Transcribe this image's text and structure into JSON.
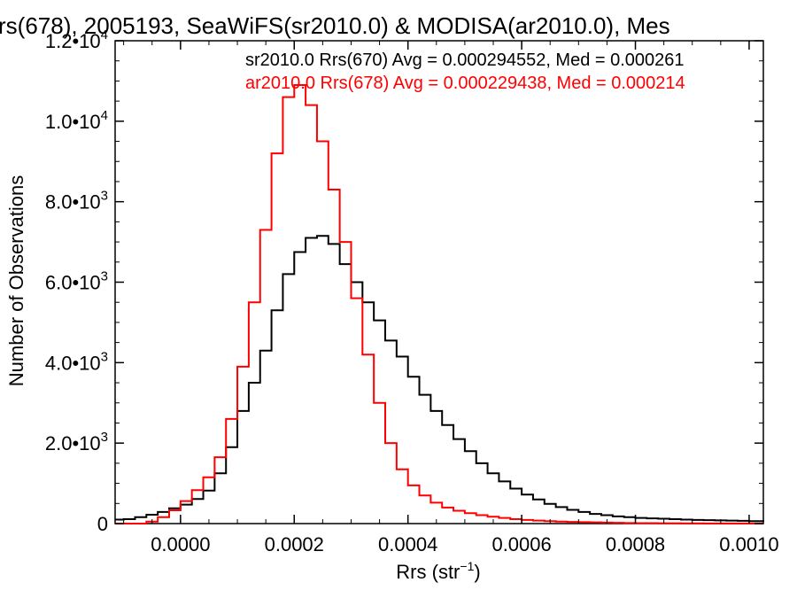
{
  "chart_data": {
    "type": "histogram",
    "title": "rs(678), 2005193, SeaWiFS(sr2010.0) & MODISA(ar2010.0), Mes",
    "xlabel": "Rrs (str⁻¹)",
    "ylabel": "Number of Observations",
    "xlim": [
      -0.000115,
      0.001025
    ],
    "ylim": [
      0,
      12000
    ],
    "x_ticks": [
      0.0,
      0.0002,
      0.0004,
      0.0006,
      0.0008,
      0.001
    ],
    "x_tick_labels": [
      "0.0000",
      "0.0002",
      "0.0004",
      "0.0006",
      "0.0008",
      "0.0010"
    ],
    "y_ticks": [
      0,
      2000,
      4000,
      6000,
      8000,
      10000,
      12000
    ],
    "y_tick_labels": [
      {
        "mantissa": "0",
        "exponent": ""
      },
      {
        "mantissa": "2.0•10",
        "exponent": "3"
      },
      {
        "mantissa": "4.0•10",
        "exponent": "3"
      },
      {
        "mantissa": "6.0•10",
        "exponent": "3"
      },
      {
        "mantissa": "8.0•10",
        "exponent": "3"
      },
      {
        "mantissa": "1.0•10",
        "exponent": "4"
      },
      {
        "mantissa": "1.2•10",
        "exponent": "4"
      }
    ],
    "legend": [
      {
        "text": "sr2010.0 Rrs(670) Avg = 0.000294552, Med = 0.000261",
        "color": "#000000"
      },
      {
        "text": "ar2010.0 Rrs(678) Avg = 0.000229438, Med = 0.000214",
        "color": "#ff0000"
      }
    ],
    "series": [
      {
        "name": "sr2010.0 Rrs(670)",
        "color": "#000000",
        "points": [
          [
            -0.000115,
            100
          ],
          [
            -0.0001,
            110
          ],
          [
            -8e-05,
            160
          ],
          [
            -6e-05,
            220
          ],
          [
            -4e-05,
            290
          ],
          [
            -2e-05,
            380
          ],
          [
            0.0,
            470
          ],
          [
            2e-05,
            610
          ],
          [
            4e-05,
            820
          ],
          [
            6e-05,
            1250
          ],
          [
            8e-05,
            1900
          ],
          [
            0.0001,
            2800
          ],
          [
            0.00012,
            3500
          ],
          [
            0.00014,
            4300
          ],
          [
            0.00016,
            5300
          ],
          [
            0.00018,
            6200
          ],
          [
            0.0002,
            6750
          ],
          [
            0.00022,
            7100
          ],
          [
            0.00024,
            7150
          ],
          [
            0.00026,
            6950
          ],
          [
            0.00028,
            6450
          ],
          [
            0.0003,
            6000
          ],
          [
            0.00032,
            5500
          ],
          [
            0.00034,
            5050
          ],
          [
            0.00036,
            4550
          ],
          [
            0.00038,
            4150
          ],
          [
            0.0004,
            3650
          ],
          [
            0.00042,
            3200
          ],
          [
            0.00044,
            2800
          ],
          [
            0.00046,
            2450
          ],
          [
            0.00048,
            2100
          ],
          [
            0.0005,
            1800
          ],
          [
            0.00052,
            1500
          ],
          [
            0.00054,
            1250
          ],
          [
            0.00056,
            1050
          ],
          [
            0.00058,
            870
          ],
          [
            0.0006,
            720
          ],
          [
            0.00062,
            600
          ],
          [
            0.00064,
            490
          ],
          [
            0.00066,
            410
          ],
          [
            0.00068,
            340
          ],
          [
            0.0007,
            290
          ],
          [
            0.00072,
            240
          ],
          [
            0.00074,
            210
          ],
          [
            0.00076,
            180
          ],
          [
            0.00078,
            160
          ],
          [
            0.0008,
            140
          ],
          [
            0.00082,
            130
          ],
          [
            0.00084,
            120
          ],
          [
            0.00086,
            110
          ],
          [
            0.00088,
            100
          ],
          [
            0.0009,
            90
          ],
          [
            0.00092,
            85
          ],
          [
            0.00094,
            80
          ],
          [
            0.00096,
            75
          ],
          [
            0.00098,
            70
          ],
          [
            0.001,
            60
          ],
          [
            0.001025,
            50
          ]
        ]
      },
      {
        "name": "ar2010.0 Rrs(678)",
        "color": "#ff0000",
        "points": [
          [
            -0.000115,
            0
          ],
          [
            -0.0001,
            0
          ],
          [
            -8e-05,
            0
          ],
          [
            -6e-05,
            50
          ],
          [
            -4e-05,
            160
          ],
          [
            -2e-05,
            330
          ],
          [
            0.0,
            560
          ],
          [
            2e-05,
            830
          ],
          [
            4e-05,
            1150
          ],
          [
            6e-05,
            1650
          ],
          [
            8e-05,
            2600
          ],
          [
            0.0001,
            3900
          ],
          [
            0.00012,
            5500
          ],
          [
            0.00014,
            7300
          ],
          [
            0.00016,
            9200
          ],
          [
            0.00018,
            10600
          ],
          [
            0.0002,
            10900
          ],
          [
            0.00022,
            10400
          ],
          [
            0.00024,
            9500
          ],
          [
            0.00026,
            8300
          ],
          [
            0.00028,
            7000
          ],
          [
            0.0003,
            5600
          ],
          [
            0.00032,
            4200
          ],
          [
            0.00034,
            3000
          ],
          [
            0.00036,
            2000
          ],
          [
            0.00038,
            1350
          ],
          [
            0.0004,
            950
          ],
          [
            0.00042,
            700
          ],
          [
            0.00044,
            520
          ],
          [
            0.00046,
            400
          ],
          [
            0.00048,
            320
          ],
          [
            0.0005,
            260
          ],
          [
            0.00052,
            210
          ],
          [
            0.00054,
            170
          ],
          [
            0.00056,
            140
          ],
          [
            0.00058,
            110
          ],
          [
            0.0006,
            90
          ],
          [
            0.00062,
            75
          ],
          [
            0.00064,
            60
          ],
          [
            0.00066,
            50
          ],
          [
            0.00068,
            40
          ],
          [
            0.0007,
            35
          ],
          [
            0.00072,
            30
          ],
          [
            0.00074,
            25
          ],
          [
            0.00076,
            20
          ],
          [
            0.00078,
            15
          ],
          [
            0.0008,
            12
          ],
          [
            0.00082,
            10
          ],
          [
            0.00084,
            8
          ],
          [
            0.00086,
            7
          ],
          [
            0.00088,
            6
          ],
          [
            0.0009,
            5
          ],
          [
            0.00092,
            4
          ],
          [
            0.00094,
            4
          ],
          [
            0.00096,
            3
          ],
          [
            0.00098,
            3
          ],
          [
            0.001,
            2
          ],
          [
            0.001025,
            2
          ]
        ]
      }
    ],
    "grid": false,
    "legend_position": "top-right"
  }
}
